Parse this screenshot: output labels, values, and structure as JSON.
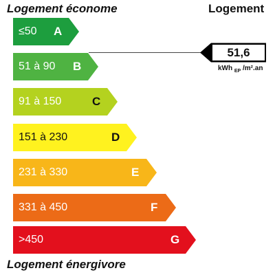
{
  "header": {
    "left": "Logement économe",
    "right": "Logement"
  },
  "footer": {
    "label": "Logement énergivore"
  },
  "classes": [
    {
      "letter": "A",
      "range": "≤50",
      "color": "#1d9e3e"
    },
    {
      "letter": "B",
      "range": "51 à 90",
      "color": "#4fb342"
    },
    {
      "letter": "C",
      "range": "91 à 150",
      "color": "#b4d21f"
    },
    {
      "letter": "D",
      "range": "151 à 230",
      "color": "#fff21f"
    },
    {
      "letter": "E",
      "range": "231 à 330",
      "color": "#f8b619"
    },
    {
      "letter": "F",
      "range": "331 à 450",
      "color": "#ec6b17"
    },
    {
      "letter": "G",
      "range": ">450",
      "color": "#e3101d"
    }
  ],
  "marker": {
    "value": "51,6",
    "class": "B"
  },
  "unit": {
    "main": "kWh",
    "sub": "EP",
    "rest": "/m².an"
  }
}
